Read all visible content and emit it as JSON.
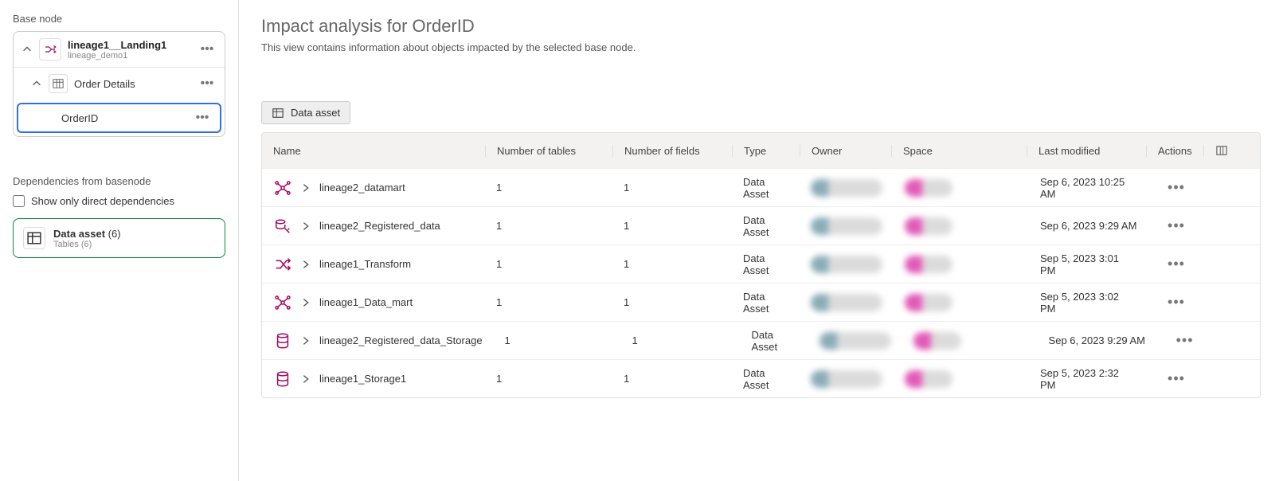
{
  "sidebar": {
    "base_label": "Base node",
    "root": {
      "title": "lineage1__Landing1",
      "subtitle": "lineage_demo1"
    },
    "table_node": {
      "label": "Order Details"
    },
    "field_node": {
      "label": "OrderID"
    },
    "dep_label": "Dependencies from basenode",
    "show_direct_label": "Show only direct dependencies",
    "dep_card": {
      "title": "Data asset",
      "count": "(6)",
      "sub": "Tables (6)"
    }
  },
  "main": {
    "title": "Impact analysis for OrderID",
    "desc": "This view contains information about objects impacted by the selected base node.",
    "filter_chip": "Data asset"
  },
  "columns": {
    "name": "Name",
    "ntables": "Number of tables",
    "nfields": "Number of fields",
    "type": "Type",
    "owner": "Owner",
    "space": "Space",
    "modified": "Last modified",
    "actions": "Actions"
  },
  "rows": [
    {
      "icon": "datamart",
      "name": "lineage2_datamart",
      "ntables": "1",
      "nfields": "1",
      "type": "Data Asset",
      "modified": "Sep 6, 2023 10:25 AM"
    },
    {
      "icon": "registered",
      "name": "lineage2_Registered_data",
      "ntables": "1",
      "nfields": "1",
      "type": "Data Asset",
      "modified": "Sep 6, 2023 9:29 AM"
    },
    {
      "icon": "transform",
      "name": "lineage1_Transform",
      "ntables": "1",
      "nfields": "1",
      "type": "Data Asset",
      "modified": "Sep 5, 2023 3:01 PM"
    },
    {
      "icon": "datamart",
      "name": "lineage1_Data_mart",
      "ntables": "1",
      "nfields": "1",
      "type": "Data Asset",
      "modified": "Sep 5, 2023 3:02 PM"
    },
    {
      "icon": "storage",
      "name": "lineage2_Registered_data_Storage",
      "ntables": "1",
      "nfields": "1",
      "type": "Data Asset",
      "modified": "Sep 6, 2023 9:29 AM"
    },
    {
      "icon": "storage",
      "name": "lineage1_Storage1",
      "ntables": "1",
      "nfields": "1",
      "type": "Data Asset",
      "modified": "Sep 5, 2023 2:32 PM"
    }
  ]
}
